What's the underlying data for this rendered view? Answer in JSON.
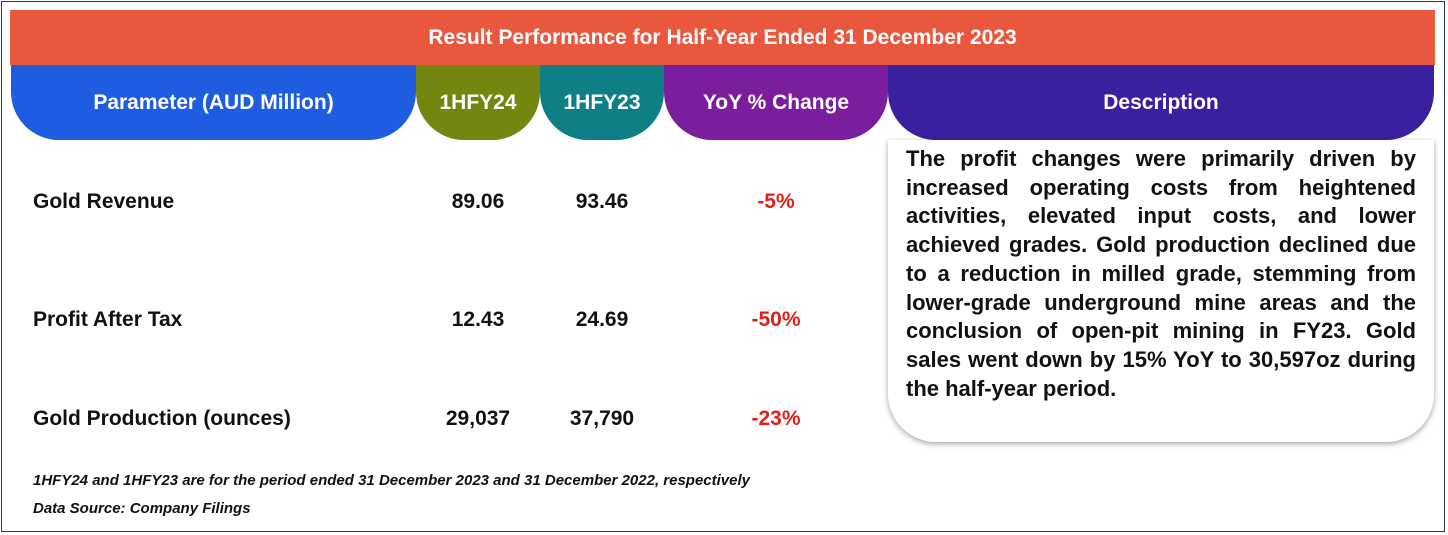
{
  "title": "Result Performance for Half-Year Ended 31 December 2023",
  "headers": {
    "parameter": "Parameter (AUD Million)",
    "fy24": "1HFY24",
    "fy23": "1HFY23",
    "yoy": "YoY % Change",
    "description": "Description"
  },
  "rows": [
    {
      "label": "Gold Revenue",
      "fy24": "89.06",
      "fy23": "93.46",
      "yoy": "-5%"
    },
    {
      "label": "Profit After Tax",
      "fy24": "12.43",
      "fy23": "24.69",
      "yoy": "-50%"
    },
    {
      "label": "Gold Production (ounces)",
      "fy24": "29,037",
      "fy23": "37,790",
      "yoy": "-23%"
    }
  ],
  "description": "The profit changes were primarily driven by increased operating costs from heightened activities, elevated input costs, and lower achieved grades. Gold production declined due to a reduction in milled grade, stemming from lower-grade underground mine areas and the conclusion of open-pit mining in FY23. Gold sales went down by 15% YoY to 30,597oz during the half-year period.",
  "notes": {
    "period": "1HFY24 and 1HFY23 are for the period ended 31 December 2023 and 31 December 2022, respectively",
    "source": "Data Source: Company Filings"
  },
  "colors": {
    "title_bar": "#e9573f",
    "parameter_header": "#1e5de0",
    "fy24_header": "#74860f",
    "fy23_header": "#0f7f86",
    "yoy_header": "#7a1e9e",
    "description_header": "#3a1f9e",
    "negative_change": "#e0201b"
  }
}
